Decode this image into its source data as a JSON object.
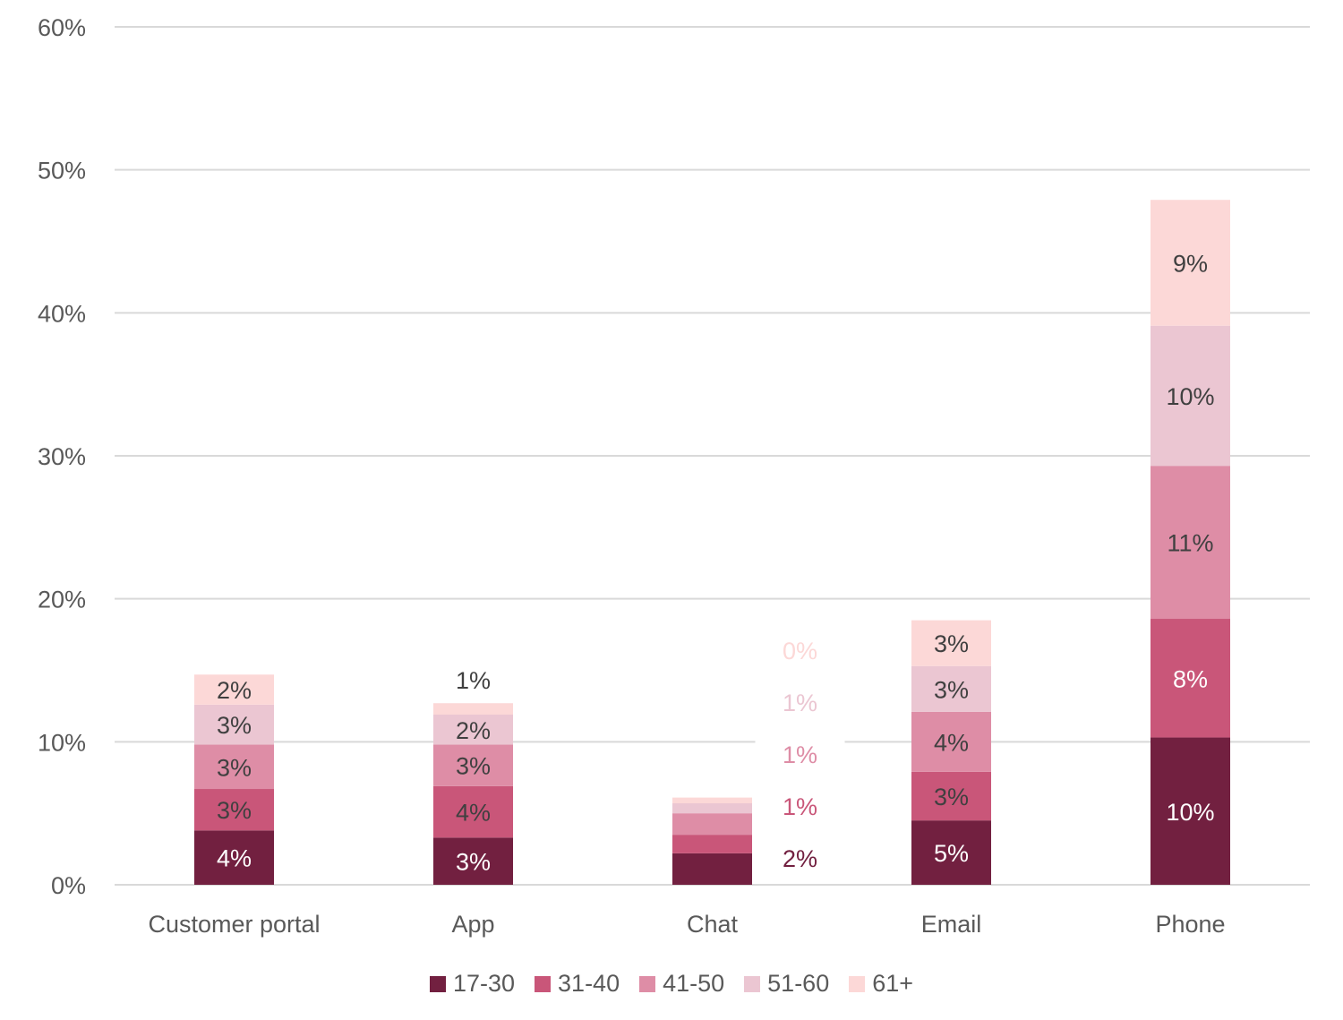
{
  "chart_data": {
    "type": "bar",
    "stacked": true,
    "categories": [
      "Customer portal",
      "App",
      "Chat",
      "Email",
      "Phone"
    ],
    "ylim": [
      0,
      60
    ],
    "yticks": [
      0,
      10,
      20,
      30,
      40,
      50,
      60
    ],
    "ytick_labels": [
      "0%",
      "10%",
      "20%",
      "30%",
      "40%",
      "50%",
      "60%"
    ],
    "grid": true,
    "legend_position": "bottom",
    "series": [
      {
        "name": "17-30",
        "color": "#722040",
        "values": [
          3.8,
          3.3,
          2.2,
          4.5,
          10.3
        ],
        "labels": [
          "4%",
          "3%",
          "2%",
          "5%",
          "10%"
        ]
      },
      {
        "name": "31-40",
        "color": "#c95679",
        "values": [
          2.9,
          3.6,
          1.3,
          3.4,
          8.3
        ],
        "labels": [
          "3%",
          "4%",
          "1%",
          "3%",
          "8%"
        ]
      },
      {
        "name": "41-50",
        "color": "#de8da6",
        "values": [
          3.1,
          2.9,
          1.5,
          4.2,
          10.7
        ],
        "labels": [
          "3%",
          "3%",
          "1%",
          "4%",
          "11%"
        ]
      },
      {
        "name": "51-60",
        "color": "#ebc6d2",
        "values": [
          2.8,
          2.1,
          0.7,
          3.2,
          9.8
        ],
        "labels": [
          "3%",
          "2%",
          "1%",
          "3%",
          "10%"
        ]
      },
      {
        "name": "61+",
        "color": "#fcd8d7",
        "values": [
          2.1,
          0.8,
          0.4,
          3.2,
          8.8
        ],
        "labels": [
          "2%",
          "1%",
          "0%",
          "3%",
          "9%"
        ]
      }
    ]
  }
}
